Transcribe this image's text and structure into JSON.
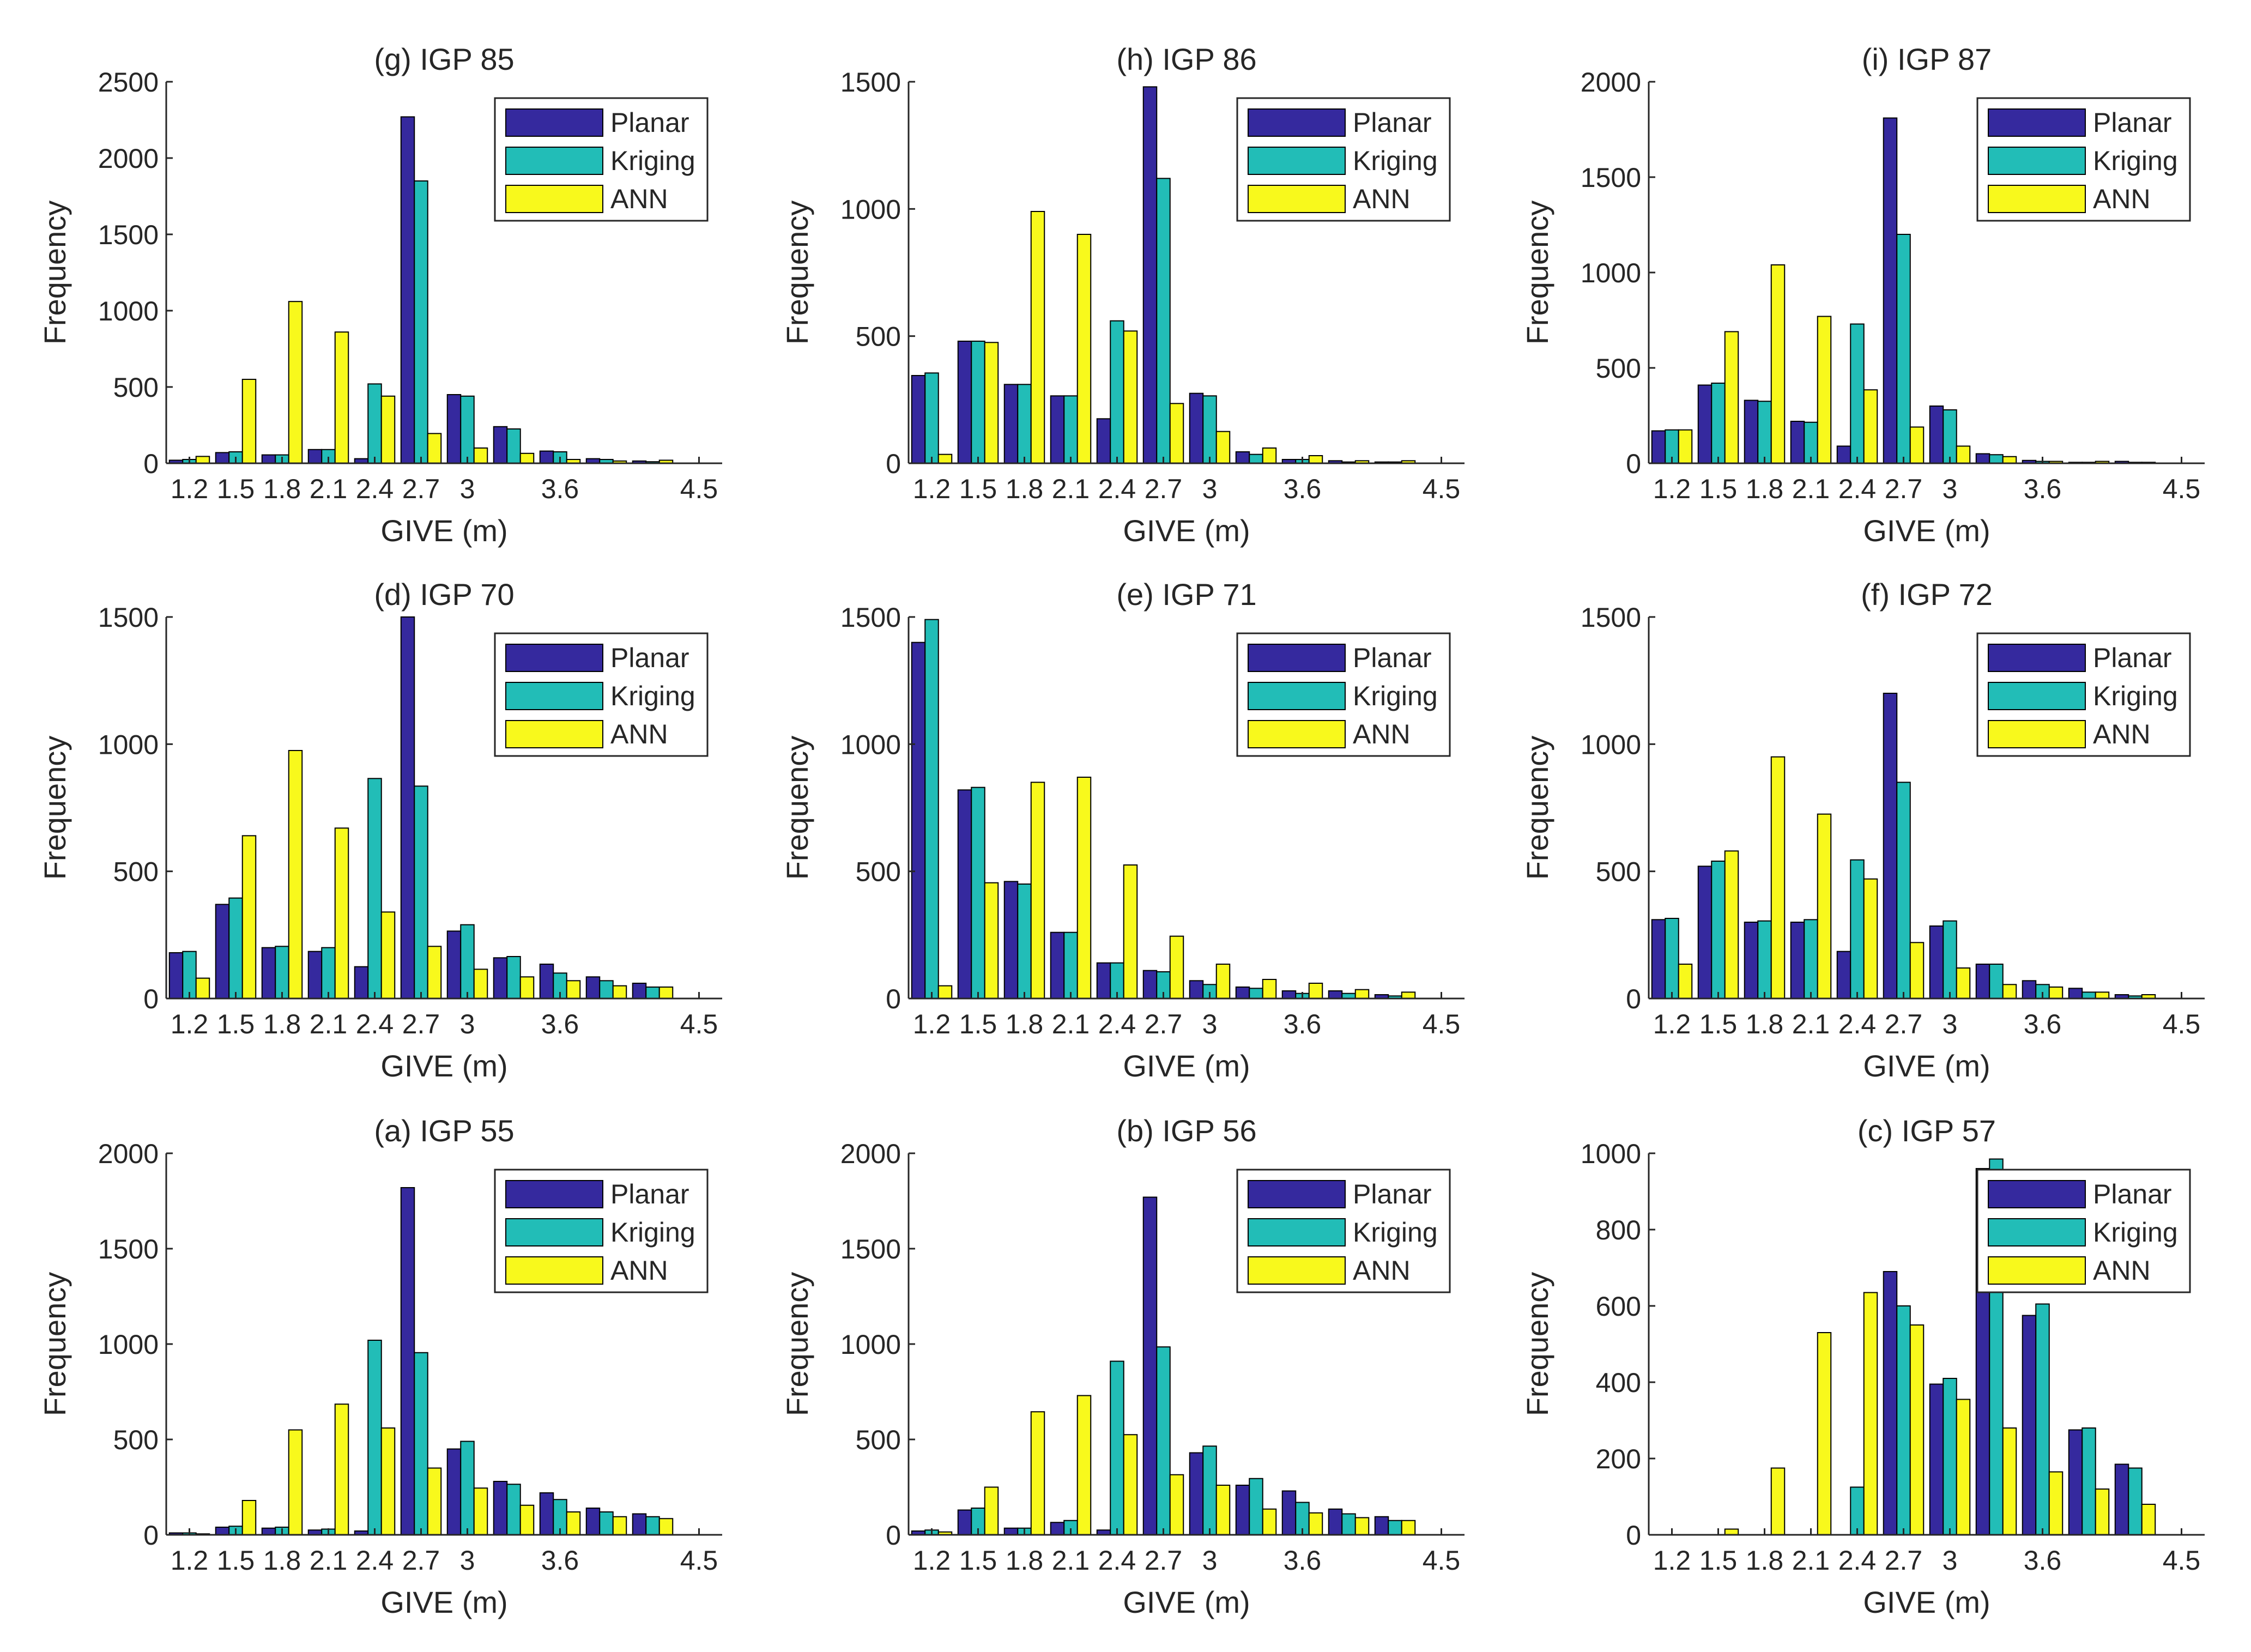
{
  "colors": {
    "planar": "#35299e",
    "kriging": "#22bdb7",
    "ann": "#f8f91c",
    "axis": "#262626",
    "background": "#ffffff"
  },
  "chart_data": [
    {
      "type": "bar",
      "title": "(g) IGP 85",
      "xlabel": "GIVE (m)",
      "ylabel": "Frequency",
      "xticks": [
        "1.2",
        "1.5",
        "1.8",
        "2.1",
        "2.4",
        "2.7",
        "3",
        "3.6",
        "4.5"
      ],
      "yticks": [
        "0",
        "500",
        "1000",
        "1500",
        "2000",
        "2500"
      ],
      "ylim": [
        0,
        2500
      ],
      "legend": [
        "Planar",
        "Kriging",
        "ANN"
      ],
      "series": [
        {
          "name": "Planar",
          "values": [
            20,
            70,
            55,
            90,
            30,
            2270,
            450,
            240,
            80,
            30,
            15
          ]
        },
        {
          "name": "Kriging",
          "values": [
            25,
            75,
            55,
            90,
            520,
            1850,
            440,
            225,
            75,
            25,
            10
          ]
        },
        {
          "name": "ANN",
          "values": [
            45,
            550,
            1060,
            860,
            440,
            195,
            100,
            65,
            25,
            15,
            20
          ]
        }
      ]
    },
    {
      "type": "bar",
      "title": "(h) IGP 86",
      "xlabel": "GIVE (m)",
      "ylabel": "Frequency",
      "xticks": [
        "1.2",
        "1.5",
        "1.8",
        "2.1",
        "2.4",
        "2.7",
        "3",
        "3.6",
        "4.5"
      ],
      "yticks": [
        "0",
        "500",
        "1000",
        "1500"
      ],
      "ylim": [
        0,
        1500
      ],
      "legend": [
        "Planar",
        "Kriging",
        "ANN"
      ],
      "series": [
        {
          "name": "Planar",
          "values": [
            345,
            480,
            310,
            265,
            175,
            1480,
            275,
            45,
            15,
            10,
            5
          ]
        },
        {
          "name": "Kriging",
          "values": [
            355,
            480,
            310,
            265,
            560,
            1120,
            265,
            35,
            15,
            5,
            5
          ]
        },
        {
          "name": "ANN",
          "values": [
            35,
            475,
            990,
            900,
            520,
            235,
            125,
            60,
            30,
            10,
            10
          ]
        }
      ]
    },
    {
      "type": "bar",
      "title": "(i) IGP 87",
      "xlabel": "GIVE (m)",
      "ylabel": "Frequency",
      "xticks": [
        "1.2",
        "1.5",
        "1.8",
        "2.1",
        "2.4",
        "2.7",
        "3",
        "3.6",
        "4.5"
      ],
      "yticks": [
        "0",
        "500",
        "1000",
        "1500",
        "2000"
      ],
      "ylim": [
        0,
        2000
      ],
      "legend": [
        "Planar",
        "Kriging",
        "ANN"
      ],
      "series": [
        {
          "name": "Planar",
          "values": [
            170,
            410,
            330,
            220,
            90,
            1810,
            300,
            50,
            15,
            5,
            10
          ]
        },
        {
          "name": "Kriging",
          "values": [
            175,
            420,
            325,
            215,
            730,
            1200,
            280,
            45,
            10,
            5,
            5
          ]
        },
        {
          "name": "ANN",
          "values": [
            175,
            690,
            1040,
            770,
            385,
            190,
            90,
            35,
            10,
            10,
            5
          ]
        }
      ]
    },
    {
      "type": "bar",
      "title": "(d) IGP 70",
      "xlabel": "GIVE (m)",
      "ylabel": "Frequency",
      "xticks": [
        "1.2",
        "1.5",
        "1.8",
        "2.1",
        "2.4",
        "2.7",
        "3",
        "3.6",
        "4.5"
      ],
      "yticks": [
        "0",
        "500",
        "1000",
        "1500"
      ],
      "ylim": [
        0,
        1500
      ],
      "legend": [
        "Planar",
        "Kriging",
        "ANN"
      ],
      "series": [
        {
          "name": "Planar",
          "values": [
            180,
            370,
            200,
            185,
            125,
            1510,
            265,
            160,
            135,
            85,
            60
          ]
        },
        {
          "name": "Kriging",
          "values": [
            185,
            395,
            205,
            200,
            865,
            835,
            290,
            165,
            100,
            70,
            45
          ]
        },
        {
          "name": "ANN",
          "values": [
            80,
            640,
            975,
            670,
            340,
            205,
            115,
            85,
            70,
            50,
            45
          ]
        }
      ]
    },
    {
      "type": "bar",
      "title": "(e) IGP 71",
      "xlabel": "GIVE (m)",
      "ylabel": "Frequency",
      "xticks": [
        "1.2",
        "1.5",
        "1.8",
        "2.1",
        "2.4",
        "2.7",
        "3",
        "3.6",
        "4.5"
      ],
      "yticks": [
        "0",
        "500",
        "1000",
        "1500"
      ],
      "ylim": [
        0,
        1500
      ],
      "legend": [
        "Planar",
        "Kriging",
        "ANN"
      ],
      "series": [
        {
          "name": "Planar",
          "values": [
            1400,
            820,
            460,
            260,
            140,
            110,
            70,
            45,
            30,
            30,
            15
          ]
        },
        {
          "name": "Kriging",
          "values": [
            1490,
            830,
            450,
            260,
            140,
            105,
            55,
            40,
            20,
            20,
            10
          ]
        },
        {
          "name": "ANN",
          "values": [
            50,
            455,
            850,
            870,
            525,
            245,
            135,
            75,
            60,
            35,
            25
          ]
        }
      ]
    },
    {
      "type": "bar",
      "title": "(f) IGP 72",
      "xlabel": "GIVE (m)",
      "ylabel": "Frequency",
      "xticks": [
        "1.2",
        "1.5",
        "1.8",
        "2.1",
        "2.4",
        "2.7",
        "3",
        "3.6",
        "4.5"
      ],
      "yticks": [
        "0",
        "500",
        "1000",
        "1500"
      ],
      "ylim": [
        0,
        1500
      ],
      "legend": [
        "Planar",
        "Kriging",
        "ANN"
      ],
      "series": [
        {
          "name": "Planar",
          "values": [
            310,
            520,
            300,
            300,
            185,
            1200,
            285,
            135,
            70,
            40,
            15
          ]
        },
        {
          "name": "Kriging",
          "values": [
            315,
            540,
            305,
            310,
            545,
            850,
            305,
            135,
            55,
            25,
            10
          ]
        },
        {
          "name": "ANN",
          "values": [
            135,
            580,
            950,
            725,
            470,
            220,
            120,
            55,
            45,
            25,
            15
          ]
        }
      ]
    },
    {
      "type": "bar",
      "title": "(a) IGP 55",
      "xlabel": "GIVE (m)",
      "ylabel": "Frequency",
      "xticks": [
        "1.2",
        "1.5",
        "1.8",
        "2.1",
        "2.4",
        "2.7",
        "3",
        "3.6",
        "4.5"
      ],
      "yticks": [
        "0",
        "500",
        "1000",
        "1500",
        "2000"
      ],
      "ylim": [
        0,
        2000
      ],
      "legend": [
        "Planar",
        "Kriging",
        "ANN"
      ],
      "series": [
        {
          "name": "Planar",
          "values": [
            10,
            40,
            35,
            25,
            20,
            1820,
            450,
            280,
            220,
            140,
            110
          ]
        },
        {
          "name": "Kriging",
          "values": [
            10,
            45,
            40,
            30,
            1020,
            955,
            490,
            265,
            185,
            120,
            95
          ]
        },
        {
          "name": "ANN",
          "values": [
            5,
            180,
            550,
            685,
            560,
            350,
            245,
            155,
            120,
            95,
            85
          ]
        }
      ]
    },
    {
      "type": "bar",
      "title": "(b) IGP 56",
      "xlabel": "GIVE (m)",
      "ylabel": "Frequency",
      "xticks": [
        "1.2",
        "1.5",
        "1.8",
        "2.1",
        "2.4",
        "2.7",
        "3",
        "3.6",
        "4.5"
      ],
      "yticks": [
        "0",
        "500",
        "1000",
        "1500",
        "2000"
      ],
      "ylim": [
        0,
        2000
      ],
      "legend": [
        "Planar",
        "Kriging",
        "ANN"
      ],
      "series": [
        {
          "name": "Planar",
          "values": [
            20,
            130,
            35,
            65,
            25,
            1770,
            430,
            260,
            230,
            135,
            95
          ]
        },
        {
          "name": "Kriging",
          "values": [
            25,
            140,
            35,
            75,
            910,
            985,
            465,
            295,
            170,
            110,
            75
          ]
        },
        {
          "name": "ANN",
          "values": [
            15,
            250,
            645,
            730,
            525,
            315,
            260,
            135,
            115,
            90,
            75
          ]
        }
      ]
    },
    {
      "type": "bar",
      "title": "(c) IGP 57",
      "xlabel": "GIVE (m)",
      "ylabel": "Frequency",
      "xticks": [
        "1.2",
        "1.5",
        "1.8",
        "2.1",
        "2.4",
        "2.7",
        "3",
        "3.6",
        "4.5"
      ],
      "yticks": [
        "0",
        "200",
        "400",
        "600",
        "800",
        "1000"
      ],
      "ylim": [
        0,
        1000
      ],
      "legend": [
        "Planar",
        "Kriging",
        "ANN"
      ],
      "series": [
        {
          "name": "Planar",
          "values": [
            0,
            0,
            0,
            0,
            0,
            690,
            395,
            960,
            575,
            275,
            185
          ]
        },
        {
          "name": "Kriging",
          "values": [
            0,
            0,
            0,
            0,
            125,
            600,
            410,
            985,
            605,
            280,
            175
          ]
        },
        {
          "name": "ANN",
          "values": [
            0,
            15,
            175,
            530,
            635,
            550,
            355,
            280,
            165,
            120,
            80
          ]
        }
      ]
    }
  ]
}
